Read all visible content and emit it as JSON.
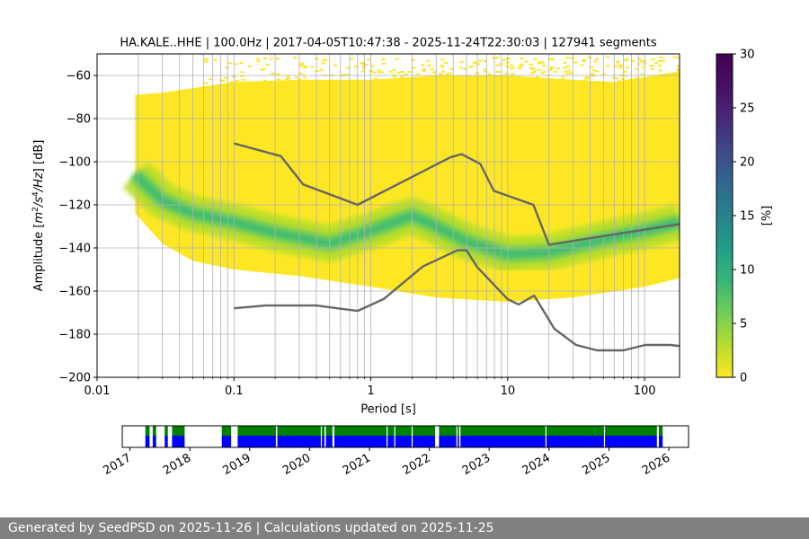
{
  "chart_data": {
    "type": "heatmap",
    "title": "HA.KALE..HHE | 100.0Hz | 2017-04-05T10:47:38 - 2025-11-24T22:30:03 | 127941 segments",
    "xlabel": "Period [s]",
    "ylabel_parts": [
      "Amplitude [",
      "m",
      "2",
      "/",
      "s",
      "4",
      "/",
      "Hz",
      "] [dB]"
    ],
    "x_scale": "log",
    "xlim": [
      0.01,
      180
    ],
    "ylim": [
      -200,
      -50
    ],
    "x_ticks": [
      0.01,
      0.1,
      1,
      10,
      100
    ],
    "x_tick_labels": [
      "0.01",
      "0.1",
      "1",
      "10",
      "100"
    ],
    "y_ticks": [
      -200,
      -180,
      -160,
      -140,
      -120,
      -100,
      -80,
      -60
    ],
    "y_tick_labels": [
      "−200",
      "−180",
      "−160",
      "−140",
      "−120",
      "−100",
      "−80",
      "−60"
    ],
    "grid": true,
    "colormap": "viridis",
    "colorbar": {
      "label": "[%]",
      "range": [
        0,
        30
      ],
      "ticks": [
        0,
        5,
        10,
        15,
        20,
        25,
        30
      ],
      "tick_labels": [
        "0",
        "5",
        "10",
        "15",
        "20",
        "25",
        "30"
      ]
    },
    "density": {
      "period_range": [
        0.019,
        180
      ],
      "upper_envelope_db": [
        [
          0.019,
          -69
        ],
        [
          0.03,
          -68
        ],
        [
          0.1,
          -63
        ],
        [
          0.3,
          -62
        ],
        [
          1,
          -62
        ],
        [
          3,
          -60
        ],
        [
          10,
          -60
        ],
        [
          30,
          -62
        ],
        [
          60,
          -63
        ],
        [
          120,
          -60
        ],
        [
          180,
          -58
        ]
      ],
      "lower_envelope_db": [
        [
          0.019,
          -124
        ],
        [
          0.03,
          -138
        ],
        [
          0.05,
          -146
        ],
        [
          0.1,
          -150
        ],
        [
          0.3,
          -153
        ],
        [
          1,
          -158
        ],
        [
          3,
          -163
        ],
        [
          10,
          -165
        ],
        [
          30,
          -163
        ],
        [
          100,
          -158
        ],
        [
          180,
          -154
        ]
      ],
      "mode_db": [
        [
          0.019,
          -106
        ],
        [
          0.03,
          -118
        ],
        [
          0.05,
          -124
        ],
        [
          0.1,
          -128
        ],
        [
          0.2,
          -133
        ],
        [
          0.5,
          -138
        ],
        [
          1,
          -132
        ],
        [
          2,
          -125
        ],
        [
          3,
          -130
        ],
        [
          5,
          -137
        ],
        [
          10,
          -143
        ],
        [
          20,
          -142
        ],
        [
          50,
          -136
        ],
        [
          100,
          -132
        ],
        [
          180,
          -128
        ]
      ],
      "scatter_top_db": -51
    },
    "series": [
      {
        "name": "NHNM",
        "x": [
          0.1,
          0.22,
          0.32,
          0.8,
          3.8,
          4.6,
          6.3,
          7.9,
          15.4,
          20,
          354.8
        ],
        "y": [
          -91.5,
          -97.4,
          -110.5,
          -120,
          -98,
          -96.5,
          -101,
          -113.5,
          -120,
          -138.5,
          -126
        ]
      },
      {
        "name": "NLNM",
        "x": [
          0.1,
          0.17,
          0.4,
          0.8,
          1.24,
          2.4,
          4.3,
          5,
          6,
          10,
          12,
          15.6,
          21.9,
          31.6,
          45,
          70,
          101,
          154,
          328
        ],
        "y": [
          -168,
          -166.7,
          -166.7,
          -169.2,
          -163.7,
          -148.6,
          -141.1,
          -141.1,
          -149,
          -163.8,
          -166.2,
          -162.1,
          -177.5,
          -185,
          -187.5,
          -187.5,
          -185,
          -185,
          -187.5
        ]
      }
    ],
    "availability": {
      "x_ticks": [
        "2017",
        "2018",
        "2019",
        "2020",
        "2021",
        "2022",
        "2023",
        "2024",
        "2025",
        "2026"
      ],
      "colors": {
        "data": "#0000ff",
        "upper": "#008000",
        "gap": "#ffffff"
      },
      "segments": [
        [
          "2017-04-05",
          "2017-05-01"
        ],
        [
          "2017-05-20",
          "2017-06-10"
        ],
        [
          "2017-08-01",
          "2017-08-20"
        ],
        [
          "2017-09-15",
          "2017-12-01"
        ],
        [
          "2018-07-15",
          "2018-09-10"
        ],
        [
          "2018-10-20",
          "2019-06-10"
        ],
        [
          "2019-06-15",
          "2020-04-01"
        ],
        [
          "2020-04-10",
          "2020-05-20"
        ],
        [
          "2020-06-01",
          "2022-02-05"
        ],
        [
          "2022-03-01",
          "2022-07-01"
        ],
        [
          "2022-07-10",
          "2025-10-20"
        ],
        [
          "2025-11-01",
          "2025-11-24"
        ]
      ],
      "thin_gaps": [
        "2019-06-12",
        "2020-03-10",
        "2020-05-25",
        "2021-04-15",
        "2021-06-01",
        "2021-09-15",
        "2022-06-15",
        "2023-12-10",
        "2024-12-01",
        "2025-10-25"
      ]
    }
  },
  "footer": {
    "text": "Generated by SeedPSD on 2025-11-26 | Calculations updated on 2025-11-25"
  }
}
